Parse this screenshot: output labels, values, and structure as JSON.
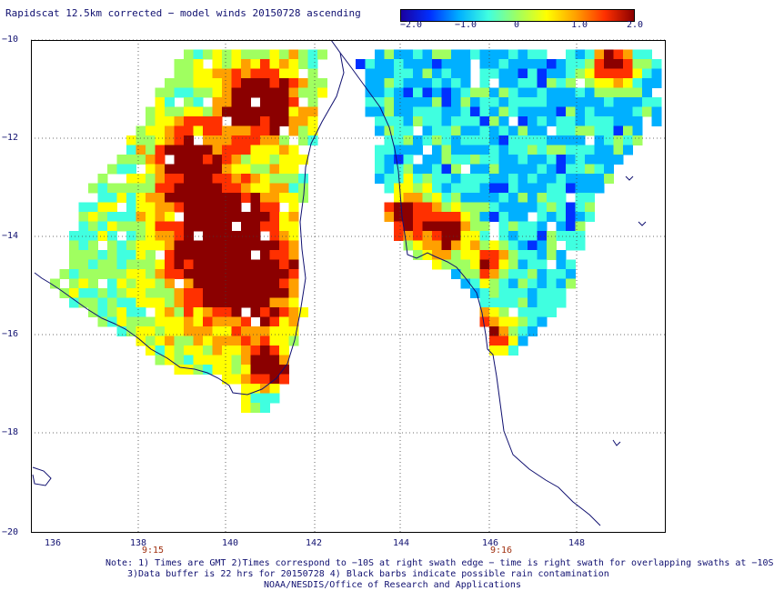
{
  "title": "Rapidscat 12.5km corrected − model winds 20150728 ascending",
  "colorbar": {
    "labels": [
      "−2.0",
      "−1.0",
      "0",
      "1.0",
      "2.0"
    ],
    "stops": [
      "#1a00a0",
      "#0030ff",
      "#00b0ff",
      "#40ffe0",
      "#a0ff60",
      "#ffff00",
      "#ffa000",
      "#ff3000",
      "#8b0000"
    ]
  },
  "axes": {
    "y_labels": [
      "−10",
      "−12",
      "−14",
      "−16",
      "−18",
      "−20"
    ],
    "x_labels": [
      "136",
      "138",
      "140",
      "142",
      "144",
      "146",
      "148"
    ]
  },
  "time_labels": [
    "9:15",
    "9:16"
  ],
  "notes": [
    "Note: 1) Times are GMT 2)Times correspond to −10S at right swath edge − time is right swath for overlapping swaths at −10S",
    "3)Data buffer is 22 hrs for 20150728 4) Black barbs indicate possible rain contamination"
  ],
  "credit": "NOAA/NESDIS/Office of Research and Applications",
  "colors": {
    "coast": "#101070",
    "grid": "#404040",
    "text": "#101070"
  }
}
